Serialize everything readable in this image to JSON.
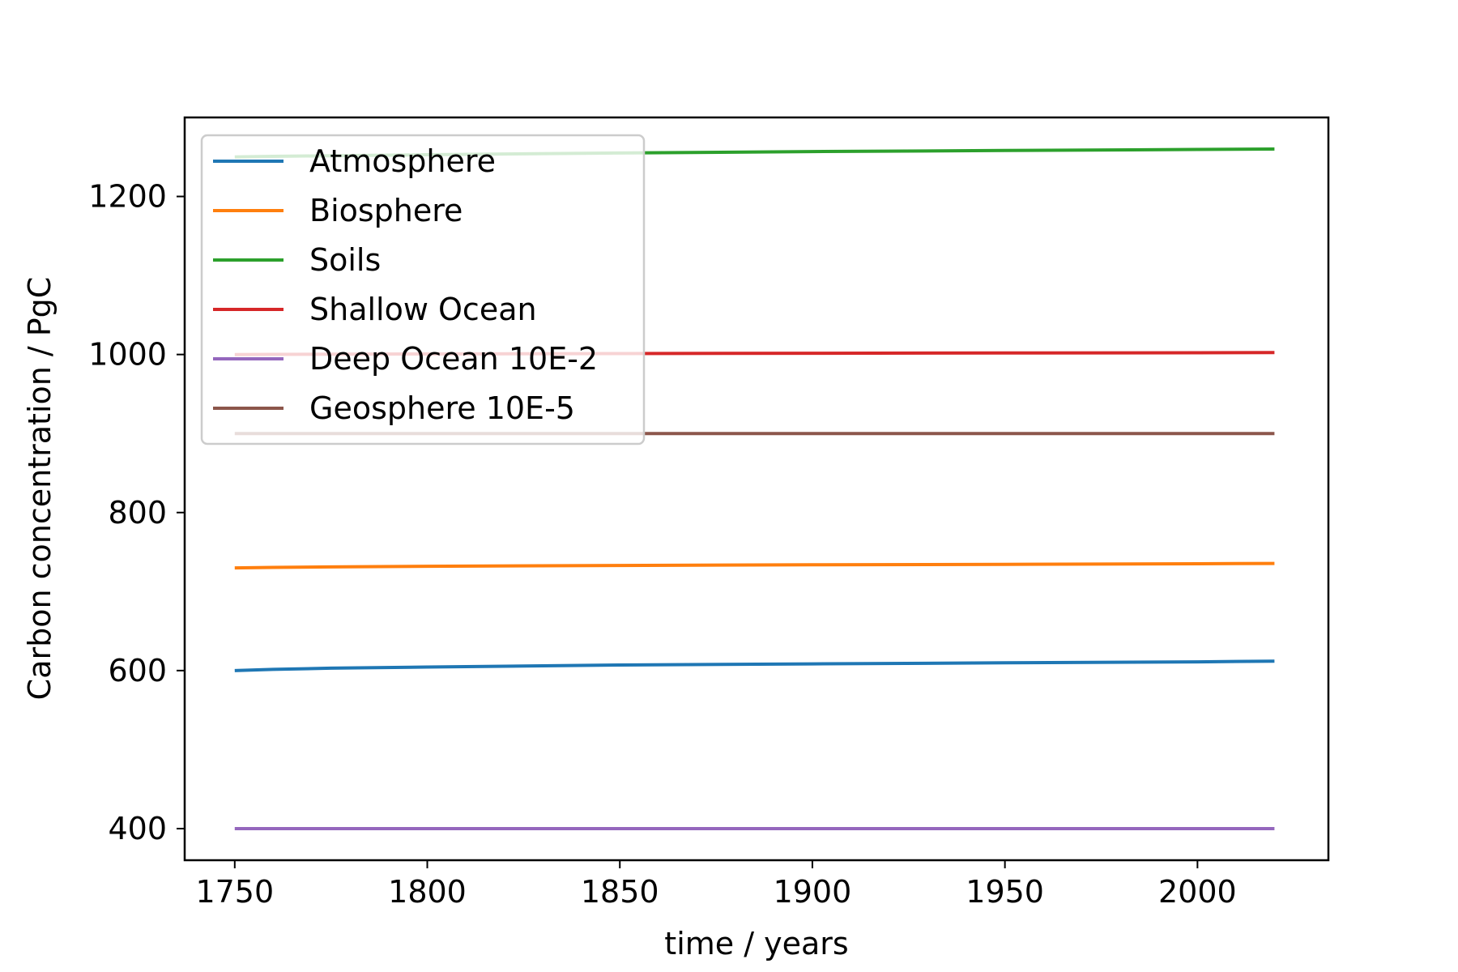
{
  "chart_data": {
    "type": "line",
    "title": "",
    "xlabel": "time / years",
    "ylabel": "Carbon concentration / PgC",
    "xlim": [
      1737,
      2034
    ],
    "ylim": [
      360,
      1300
    ],
    "xticks": [
      1750,
      1800,
      1850,
      1900,
      1950,
      2000
    ],
    "yticks": [
      400,
      600,
      800,
      1000,
      1200
    ],
    "grid": false,
    "legend_position": "upper-left",
    "x": [
      1750,
      1760,
      1775,
      1800,
      1850,
      1900,
      1950,
      2000,
      2020
    ],
    "series": [
      {
        "name": "Atmosphere",
        "color": "#1f77b4",
        "values": [
          600,
          601.5,
          603,
          604.5,
          607,
          608.5,
          609.8,
          611,
          612
        ]
      },
      {
        "name": "Biosphere",
        "color": "#ff7f0e",
        "values": [
          730,
          730.6,
          731.2,
          732,
          733,
          733.8,
          734.5,
          735.2,
          735.6
        ]
      },
      {
        "name": "Soils",
        "color": "#2ca02c",
        "values": [
          1250,
          1250.8,
          1251.5,
          1252.8,
          1255,
          1256.8,
          1258.2,
          1259.5,
          1260
        ]
      },
      {
        "name": "Shallow Ocean",
        "color": "#d62728",
        "values": [
          1000,
          1000.2,
          1000.4,
          1000.7,
          1001.2,
          1001.6,
          1001.9,
          1002.2,
          1002.4
        ]
      },
      {
        "name": "Deep Ocean 10E-2",
        "color": "#9467bd",
        "values": [
          400,
          400,
          400,
          400,
          400,
          400,
          400,
          400,
          400
        ]
      },
      {
        "name": "Geosphere 10E-5",
        "color": "#8c564b",
        "values": [
          900,
          900,
          900,
          900,
          900,
          900,
          900,
          900,
          900
        ]
      }
    ]
  }
}
